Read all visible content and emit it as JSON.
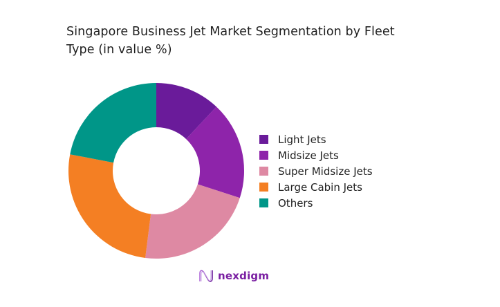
{
  "chart_data": {
    "type": "pie",
    "variant": "donut",
    "title": "Singapore Business Jet Market Segmentation by Fleet Type (in value %)",
    "categories": [
      "Light Jets",
      "Midsize Jets",
      "Super Midsize Jets",
      "Large Cabin Jets",
      "Others"
    ],
    "values": [
      12,
      18,
      22,
      26,
      22
    ],
    "colors": [
      "#6a1b9a",
      "#8e24aa",
      "#de89a3",
      "#f47f23",
      "#009688"
    ],
    "legend_position": "right",
    "start_angle": "12 o'clock, clockwise"
  },
  "title": {
    "line1": "Singapore Business Jet Market Segmentation by Fleet",
    "line2": "Type (in value %)"
  },
  "legend": [
    {
      "label": "Light Jets",
      "color": "#6a1b9a"
    },
    {
      "label": "Midsize Jets",
      "color": "#8e24aa"
    },
    {
      "label": "Super Midsize Jets",
      "color": "#de89a3"
    },
    {
      "label": "Large Cabin Jets",
      "color": "#f47f23"
    },
    {
      "label": "Others",
      "color": "#009688"
    }
  ],
  "brand": {
    "name": "nexdigm",
    "color": "#7a1fa2"
  }
}
